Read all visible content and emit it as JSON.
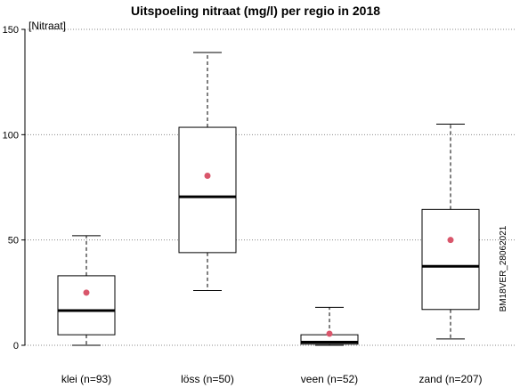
{
  "chart_data": {
    "type": "boxplot",
    "title": "Uitspoeling nitraat (mg/l) per regio in 2018",
    "ylabel": "[Nitraat]",
    "side_note": "BM18VER_28062021",
    "ylim": [
      0,
      150
    ],
    "yticks": [
      0,
      50,
      100,
      150
    ],
    "grid": "horizontal dotted",
    "mean_color": "#d9566b",
    "categories": [
      "klei (n=93)",
      "löss (n=50)",
      "veen (n=52)",
      "zand (n=207)"
    ],
    "boxes": [
      {
        "min": 0,
        "q1": 5,
        "median": 16.5,
        "q3": 33,
        "max": 52,
        "mean": 25
      },
      {
        "min": 26,
        "q1": 44,
        "median": 70.5,
        "q3": 103.5,
        "max": 139,
        "mean": 80.5
      },
      {
        "min": 0,
        "q1": 0.5,
        "median": 1.5,
        "q3": 5,
        "max": 18,
        "mean": 5.5
      },
      {
        "min": 3,
        "q1": 17,
        "median": 37.5,
        "q3": 64.5,
        "max": 105,
        "mean": 50
      }
    ]
  }
}
